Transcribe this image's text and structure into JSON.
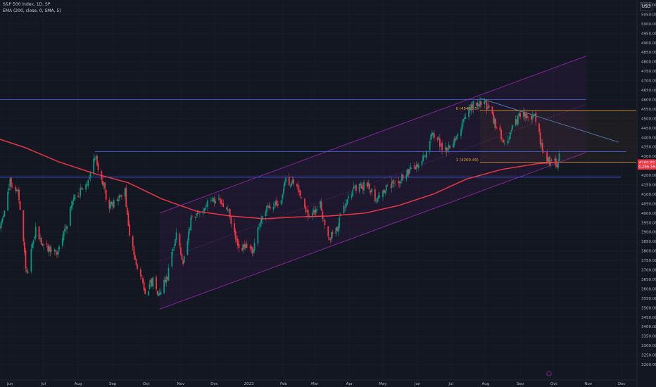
{
  "legend": {
    "symbol": "S&P 500 Index, 1D, SP",
    "indicator": "EMA (200, close, 0, SMA, 5)"
  },
  "currency": "USD",
  "chart_data": {
    "type": "candlestick",
    "price_axis": {
      "min": 3200,
      "max": 5100,
      "ticks": [
        3200,
        3250,
        3300,
        3350,
        3400,
        3450,
        3500,
        3550,
        3600,
        3650,
        3700,
        3750,
        3800,
        3850,
        3900,
        3950,
        4000,
        4050,
        4100,
        4150,
        4200,
        4250,
        4300,
        4350,
        4400,
        4450,
        4500,
        4550,
        4600,
        4650,
        4700,
        4750,
        4800,
        4850,
        4900,
        4950,
        5000,
        5050,
        5100
      ],
      "tick_labels": [
        "3200.00",
        "3250.00",
        "3300.00",
        "3350.00",
        "3400.00",
        "3450.00",
        "3500.00",
        "3550.00",
        "3600.00",
        "3650.00",
        "3700.00",
        "3750.00",
        "3800.00",
        "3850.00",
        "3900.00",
        "3950.00",
        "4000.00",
        "4050.00",
        "4100.00",
        "4150.00",
        "4200.00",
        "4250.00",
        "4300.00",
        "4350.00",
        "4400.00",
        "4450.00",
        "4500.00",
        "4550.00",
        "4600.00",
        "4650.00",
        "4700.00",
        "4750.00",
        "4800.00",
        "4850.00",
        "4900.00",
        "4950.00",
        "5000.00",
        "5050.00",
        "5100.00"
      ]
    },
    "time_axis": {
      "start": "2022-05-23",
      "end": "2023-12-14",
      "labels": [
        {
          "text": "Jun",
          "date": "2022-06-01"
        },
        {
          "text": "Jul",
          "date": "2022-07-01"
        },
        {
          "text": "Aug",
          "date": "2022-08-01"
        },
        {
          "text": "Sep",
          "date": "2022-09-01"
        },
        {
          "text": "Oct",
          "date": "2022-10-01"
        },
        {
          "text": "Nov",
          "date": "2022-11-01"
        },
        {
          "text": "Dec",
          "date": "2022-12-01"
        },
        {
          "text": "2023",
          "date": "2023-01-01"
        },
        {
          "text": "Feb",
          "date": "2023-02-01"
        },
        {
          "text": "Mar",
          "date": "2023-03-01"
        },
        {
          "text": "Apr",
          "date": "2023-04-01"
        },
        {
          "text": "May",
          "date": "2023-05-01"
        },
        {
          "text": "Jun",
          "date": "2023-06-01"
        },
        {
          "text": "Jul",
          "date": "2023-07-01"
        },
        {
          "text": "Aug",
          "date": "2023-08-01"
        },
        {
          "text": "Sep",
          "date": "2023-09-01"
        },
        {
          "text": "Oct",
          "date": "2023-10-01"
        },
        {
          "text": "Nov",
          "date": "2023-11-01"
        },
        {
          "text": "Dec",
          "date": "2023-12-01"
        }
      ]
    },
    "price_path": [
      [
        "2022-05-23",
        3920
      ],
      [
        "2022-06-01",
        4160
      ],
      [
        "2022-06-08",
        4110
      ],
      [
        "2022-06-16",
        3670
      ],
      [
        "2022-06-24",
        3910
      ],
      [
        "2022-07-01",
        3825
      ],
      [
        "2022-07-14",
        3790
      ],
      [
        "2022-07-28",
        4080
      ],
      [
        "2022-08-08",
        4140
      ],
      [
        "2022-08-16",
        4305
      ],
      [
        "2022-08-29",
        4030
      ],
      [
        "2022-09-12",
        4110
      ],
      [
        "2022-09-16",
        3870
      ],
      [
        "2022-09-30",
        3585
      ],
      [
        "2022-10-07",
        3640
      ],
      [
        "2022-10-12",
        3577
      ],
      [
        "2022-10-20",
        3670
      ],
      [
        "2022-10-28",
        3900
      ],
      [
        "2022-11-03",
        3720
      ],
      [
        "2022-11-10",
        3956
      ],
      [
        "2022-11-30",
        4080
      ],
      [
        "2022-12-13",
        4019
      ],
      [
        "2022-12-22",
        3822
      ],
      [
        "2023-01-05",
        3808
      ],
      [
        "2023-01-13",
        3999
      ],
      [
        "2023-01-31",
        4077
      ],
      [
        "2023-02-02",
        4179
      ],
      [
        "2023-02-14",
        4136
      ],
      [
        "2023-02-24",
        3970
      ],
      [
        "2023-03-06",
        4048
      ],
      [
        "2023-03-13",
        3855
      ],
      [
        "2023-03-22",
        3937
      ],
      [
        "2023-03-31",
        4109
      ],
      [
        "2023-04-18",
        4154
      ],
      [
        "2023-04-25",
        4071
      ],
      [
        "2023-05-02",
        4119
      ],
      [
        "2023-05-19",
        4191
      ],
      [
        "2023-06-05",
        4273
      ],
      [
        "2023-06-15",
        4425
      ],
      [
        "2023-06-26",
        4328
      ],
      [
        "2023-07-06",
        4411
      ],
      [
        "2023-07-19",
        4565
      ],
      [
        "2023-07-31",
        4589
      ],
      [
        "2023-08-10",
        4468
      ],
      [
        "2023-08-18",
        4370
      ],
      [
        "2023-08-31",
        4508
      ],
      [
        "2023-09-01",
        4515
      ],
      [
        "2023-09-14",
        4505
      ],
      [
        "2023-09-21",
        4330
      ],
      [
        "2023-09-27",
        4274
      ],
      [
        "2023-10-04",
        4263
      ],
      [
        "2023-10-06",
        4308
      ]
    ],
    "ema200": [
      [
        "2022-05-23",
        4390
      ],
      [
        "2022-06-15",
        4345
      ],
      [
        "2022-07-15",
        4270
      ],
      [
        "2022-08-15",
        4210
      ],
      [
        "2022-09-15",
        4160
      ],
      [
        "2022-10-15",
        4075
      ],
      [
        "2022-11-15",
        4010
      ],
      [
        "2022-12-15",
        3985
      ],
      [
        "2023-01-15",
        3970
      ],
      [
        "2023-02-15",
        3980
      ],
      [
        "2023-03-15",
        3985
      ],
      [
        "2023-04-15",
        4000
      ],
      [
        "2023-05-15",
        4040
      ],
      [
        "2023-06-15",
        4100
      ],
      [
        "2023-07-15",
        4180
      ],
      [
        "2023-08-15",
        4230
      ],
      [
        "2023-09-15",
        4260
      ],
      [
        "2023-10-06",
        4270
      ]
    ],
    "horizontal_lines": [
      {
        "price": 4600,
        "start": "2022-05-23",
        "end": "2023-10-30",
        "color": "#3f5fd6"
      },
      {
        "price": 4325,
        "start": "2022-08-16",
        "end": "2023-12-05",
        "color": "#3f5fd6"
      },
      {
        "price": 4190,
        "start": "2022-05-23",
        "end": "2023-11-30",
        "color": "#3f5fd6"
      }
    ],
    "channel": {
      "lower": [
        [
          "2022-10-13",
          3492
        ],
        [
          "2023-10-30",
          4320
        ]
      ],
      "upper": [
        [
          "2022-10-13",
          4000
        ],
        [
          "2023-10-30",
          4830
        ]
      ]
    },
    "fib_levels": [
      {
        "label": "0 (4541.25)",
        "price": 4541.25,
        "start": "2023-07-27",
        "end": "2023-12-14"
      },
      {
        "label": "1 (4269.49)",
        "price": 4269.49,
        "start": "2023-07-27",
        "end": "2023-12-14"
      }
    ],
    "trendline": [
      [
        "2023-07-27",
        4607
      ],
      [
        "2023-11-28",
        4375
      ]
    ],
    "last_price": {
      "label": "4260.87",
      "price": 4267,
      "color": "#f23645"
    },
    "ema_price": {
      "label": "4,266.59",
      "price": 4246,
      "color": "#f23645"
    }
  }
}
